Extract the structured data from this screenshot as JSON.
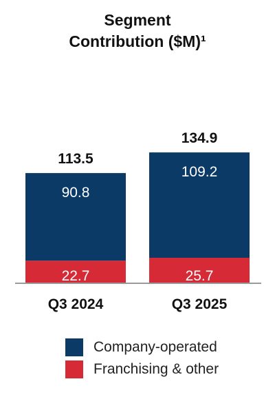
{
  "chart_data": {
    "type": "bar",
    "stacked": true,
    "title_line1": "Segment",
    "title_line2": "Contribution ($M)¹",
    "categories": [
      "Q3 2024",
      "Q3 2025"
    ],
    "series": [
      {
        "name": "Franchising & other",
        "color": "#d62b36",
        "values": [
          22.7,
          25.7
        ]
      },
      {
        "name": "Company-operated",
        "color": "#0b3a66",
        "values": [
          90.8,
          109.2
        ]
      }
    ],
    "totals": [
      "113.5",
      "134.9"
    ],
    "segment_labels": [
      [
        "22.7",
        "90.8"
      ],
      [
        "25.7",
        "109.2"
      ]
    ],
    "legend_placement": "bottom",
    "grid": false
  },
  "legend": [
    {
      "label": "Company-operated",
      "color": "#0b3a66"
    },
    {
      "label": "Franchising & other",
      "color": "#d62b36"
    }
  ]
}
